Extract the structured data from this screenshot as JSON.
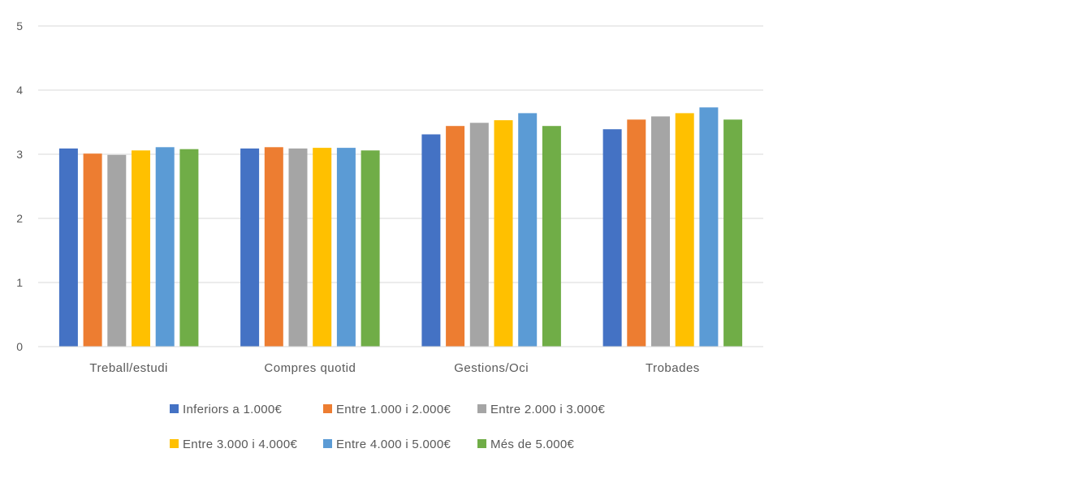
{
  "chart_data": {
    "type": "bar",
    "title": "",
    "xlabel": "",
    "ylabel": "",
    "ylim": [
      0,
      5
    ],
    "yticks": [
      0,
      1,
      2,
      3,
      4,
      5
    ],
    "grid": true,
    "legend_position": "bottom",
    "categories": [
      "Treball/estudi",
      "Compres quotid",
      "Gestions/Oci",
      "Trobades"
    ],
    "series": [
      {
        "name": "Inferiors a 1.000€",
        "color": "#4472C4",
        "values": [
          3.09,
          3.09,
          3.31,
          3.39
        ]
      },
      {
        "name": "Entre 1.000 i 2.000€",
        "color": "#ED7D31",
        "values": [
          3.01,
          3.11,
          3.44,
          3.54
        ]
      },
      {
        "name": "Entre 2.000 i 3.000€",
        "color": "#A5A5A5",
        "values": [
          2.99,
          3.09,
          3.49,
          3.59
        ]
      },
      {
        "name": "Entre 3.000 i 4.000€",
        "color": "#FFC000",
        "values": [
          3.06,
          3.1,
          3.53,
          3.64
        ]
      },
      {
        "name": "Entre 4.000 i 5.000€",
        "color": "#5B9BD5",
        "values": [
          3.11,
          3.1,
          3.64,
          3.73
        ]
      },
      {
        "name": "Més de 5.000€",
        "color": "#70AD47",
        "values": [
          3.08,
          3.06,
          3.44,
          3.54
        ]
      }
    ]
  }
}
